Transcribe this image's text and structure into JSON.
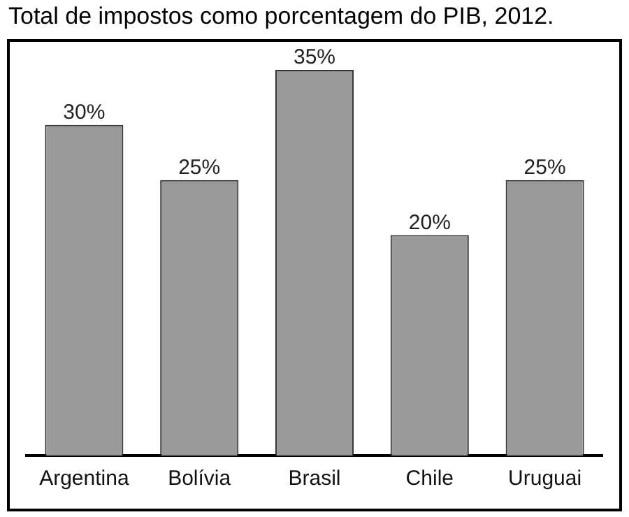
{
  "chart_data": {
    "type": "bar",
    "title": "Total de impostos como porcentagem do PIB, 2012.",
    "categories": [
      "Argentina",
      "Bolívia",
      "Brasil",
      "Chile",
      "Uruguai"
    ],
    "values": [
      30,
      25,
      35,
      20,
      25
    ],
    "value_labels": [
      "30%",
      "25%",
      "35%",
      "20%",
      "25%"
    ],
    "color": "#9a9a9a",
    "grid": false,
    "legend": false
  }
}
